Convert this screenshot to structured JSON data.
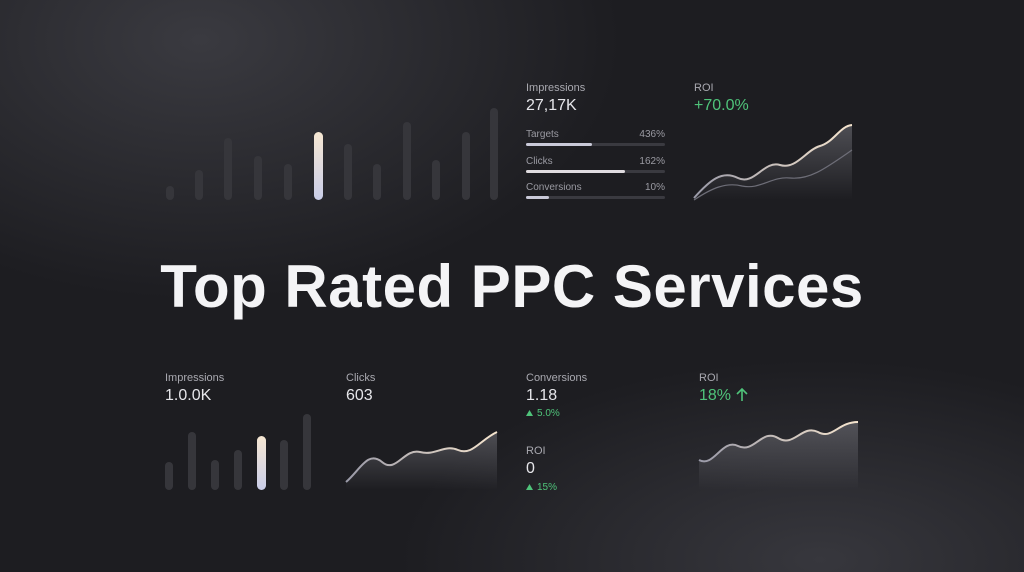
{
  "title": "Top Rated PPC Services",
  "top": {
    "impressions": {
      "label": "Impressions",
      "value": "27,17K"
    },
    "metrics": [
      {
        "label": "Targets",
        "value": "436%"
      },
      {
        "label": "Clicks",
        "value": "162%"
      },
      {
        "label": "Conversions",
        "value": "10%"
      }
    ],
    "roi": {
      "label": "ROI",
      "value": "+70.0%"
    }
  },
  "bottom": {
    "impressions": {
      "label": "Impressions",
      "value": "1.0.0K"
    },
    "clicks": {
      "label": "Clicks",
      "value": "603"
    },
    "conversions": {
      "label": "Conversions",
      "value": "1.18",
      "change": "5.0%"
    },
    "roi_small": {
      "label": "ROI",
      "value": "0",
      "change": "15%"
    },
    "roi": {
      "label": "ROI",
      "value": "18%"
    }
  }
}
